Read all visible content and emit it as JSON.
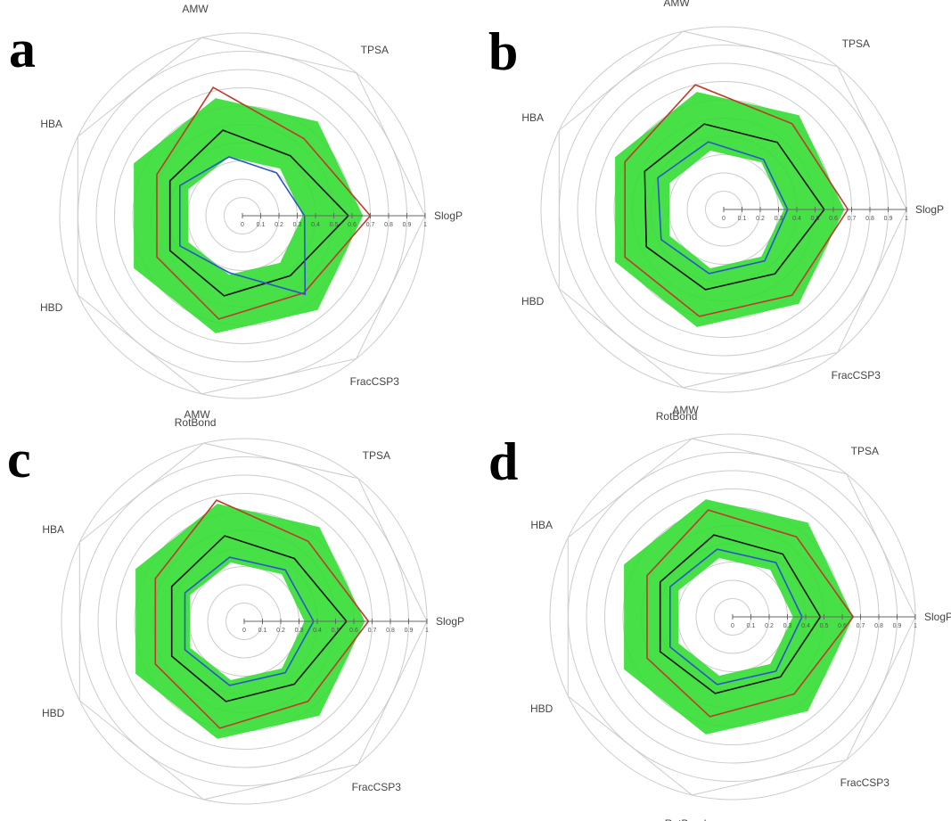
{
  "colors": {
    "range_fill": "#33dd33",
    "range_fill_opacity": 0.9,
    "upper_line": "#c0392b",
    "mean_line": "#111111",
    "lower_line": "#2a55c8",
    "grid": "#cccccc",
    "axis": "#666666"
  },
  "chart_data": [
    {
      "panel": "a",
      "type": "radar",
      "axes": [
        "SlogP",
        "TPSA",
        "AMW",
        "HBA",
        "HBD",
        "RotBond",
        "FracCSP3"
      ],
      "ticks": [
        "0",
        "0.1",
        "0.2",
        "0.3",
        "0.4",
        "0.5",
        "0.6",
        "0.7",
        "0.8",
        "0.9",
        "1"
      ],
      "rlim": [
        0,
        1
      ],
      "grid": true,
      "green_band": {
        "outer": [
          0.66,
          0.66,
          0.66,
          0.66,
          0.66,
          0.66,
          0.66
        ],
        "inner": [
          0.33,
          0.33,
          0.33,
          0.33,
          0.33,
          0.33,
          0.33
        ]
      },
      "series": [
        {
          "role": "upper",
          "values": [
            0.7,
            0.54,
            0.72,
            0.52,
            0.52,
            0.58,
            0.54
          ]
        },
        {
          "role": "mean",
          "values": [
            0.58,
            0.42,
            0.48,
            0.44,
            0.44,
            0.45,
            0.42
          ]
        },
        {
          "role": "lower",
          "values": [
            0.34,
            0.3,
            0.33,
            0.38,
            0.38,
            0.32,
            0.55
          ]
        }
      ]
    },
    {
      "panel": "b",
      "type": "radar",
      "axes": [
        "SlogP",
        "TPSA",
        "AMW",
        "HBA",
        "HBD",
        "RotBond",
        "FracCSP3"
      ],
      "ticks": [
        "0",
        "0.1",
        "0.2",
        "0.3",
        "0.4",
        "0.5",
        "0.6",
        "0.7",
        "0.8",
        "0.9",
        "1"
      ],
      "rlim": [
        0,
        1
      ],
      "grid": true,
      "green_band": {
        "outer": [
          0.66,
          0.66,
          0.66,
          0.66,
          0.66,
          0.66,
          0.66
        ],
        "inner": [
          0.33,
          0.33,
          0.33,
          0.33,
          0.33,
          0.33,
          0.33
        ]
      },
      "series": [
        {
          "role": "upper",
          "values": [
            0.68,
            0.6,
            0.7,
            0.6,
            0.6,
            0.6,
            0.6
          ]
        },
        {
          "role": "mean",
          "values": [
            0.55,
            0.47,
            0.48,
            0.48,
            0.47,
            0.45,
            0.45
          ]
        },
        {
          "role": "lower",
          "values": [
            0.35,
            0.35,
            0.38,
            0.4,
            0.38,
            0.36,
            0.36
          ]
        }
      ]
    },
    {
      "panel": "c",
      "type": "radar",
      "axes": [
        "SlogP",
        "TPSA",
        "AMW",
        "HBA",
        "HBD",
        "RotBond",
        "FracCSP3"
      ],
      "ticks": [
        "0",
        "0.1",
        "0.2",
        "0.3",
        "0.4",
        "0.5",
        "0.6",
        "0.7",
        "0.8",
        "0.9",
        "1"
      ],
      "rlim": [
        0,
        1
      ],
      "grid": true,
      "green_band": {
        "outer": [
          0.66,
          0.66,
          0.66,
          0.66,
          0.66,
          0.66,
          0.66
        ],
        "inner": [
          0.33,
          0.33,
          0.33,
          0.33,
          0.33,
          0.33,
          0.33
        ]
      },
      "series": [
        {
          "role": "upper",
          "values": [
            0.68,
            0.56,
            0.68,
            0.54,
            0.54,
            0.6,
            0.56
          ]
        },
        {
          "role": "mean",
          "values": [
            0.56,
            0.44,
            0.48,
            0.44,
            0.44,
            0.45,
            0.44
          ]
        },
        {
          "role": "lower",
          "values": [
            0.38,
            0.36,
            0.36,
            0.36,
            0.36,
            0.36,
            0.36
          ]
        }
      ]
    },
    {
      "panel": "d",
      "type": "radar",
      "axes": [
        "SlogP",
        "TPSA",
        "AMW",
        "HBA",
        "HBD",
        "RotBond",
        "FracCSP3"
      ],
      "ticks": [
        "0",
        "0.1",
        "0.2",
        "0.3",
        "0.4",
        "0.5",
        "0.6",
        "0.7",
        "0.8",
        "0.9",
        "1"
      ],
      "rlim": [
        0,
        1
      ],
      "grid": true,
      "green_band": {
        "outer": [
          0.66,
          0.66,
          0.66,
          0.66,
          0.66,
          0.66,
          0.66
        ],
        "inner": [
          0.33,
          0.33,
          0.33,
          0.33,
          0.33,
          0.33,
          0.33
        ]
      },
      "series": [
        {
          "role": "upper",
          "values": [
            0.66,
            0.56,
            0.6,
            0.52,
            0.52,
            0.56,
            0.54
          ]
        },
        {
          "role": "mean",
          "values": [
            0.48,
            0.44,
            0.46,
            0.44,
            0.44,
            0.43,
            0.42
          ]
        },
        {
          "role": "lower",
          "values": [
            0.38,
            0.38,
            0.38,
            0.38,
            0.38,
            0.38,
            0.38
          ]
        }
      ]
    }
  ]
}
